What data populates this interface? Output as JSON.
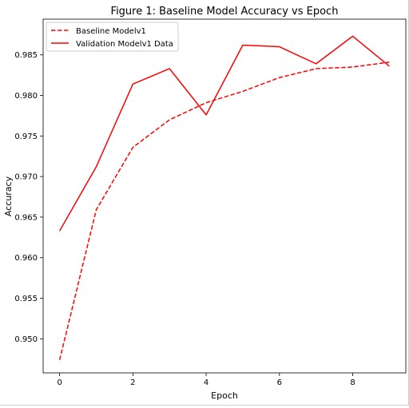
{
  "chart_data": {
    "type": "line",
    "title": "Figure 1: Baseline Model Accuracy vs Epoch",
    "xlabel": "Epoch",
    "ylabel": "Accuracy",
    "xlim": [
      -0.45,
      9.45
    ],
    "ylim": [
      0.9458,
      0.9894
    ],
    "xticks": [
      0,
      2,
      4,
      6,
      8
    ],
    "xtick_labels": [
      "0",
      "2",
      "4",
      "6",
      "8"
    ],
    "yticks": [
      0.95,
      0.955,
      0.96,
      0.965,
      0.97,
      0.975,
      0.98,
      0.985
    ],
    "ytick_labels": [
      "0.950",
      "0.955",
      "0.960",
      "0.965",
      "0.970",
      "0.975",
      "0.980",
      "0.985"
    ],
    "grid": false,
    "legend_position": "top-left",
    "x": [
      0,
      1,
      2,
      3,
      4,
      5,
      6,
      7,
      8,
      9
    ],
    "series": [
      {
        "name": "Baseline Modelv1",
        "color": "#ff0000",
        "style": "dashed",
        "values": [
          0.9474,
          0.9659,
          0.9736,
          0.977,
          0.9791,
          0.9805,
          0.9822,
          0.9833,
          0.9835,
          0.9841
        ]
      },
      {
        "name": "Validation Modelv1 Data",
        "color": "#ff0000",
        "style": "solid",
        "values": [
          0.9633,
          0.9712,
          0.9814,
          0.9833,
          0.9776,
          0.9862,
          0.986,
          0.9839,
          0.9873,
          0.9836
        ]
      }
    ]
  }
}
